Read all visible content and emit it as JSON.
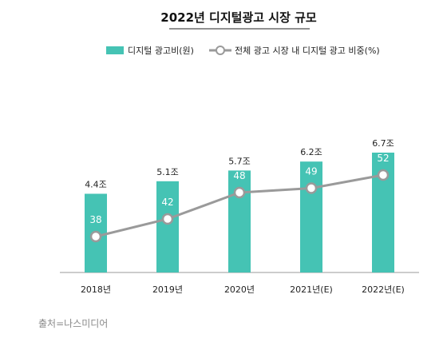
{
  "chart_data": {
    "type": "bar",
    "title": "2022년 디지털광고 시장 규모",
    "categories": [
      "2018년",
      "2019년",
      "2020년",
      "2021년(E)",
      "2022년(E)"
    ],
    "series": [
      {
        "name": "디지털 광고비(원)",
        "type": "bar",
        "values": [
          4.4,
          5.1,
          5.7,
          6.2,
          6.7
        ],
        "labels": [
          "4.4조",
          "5.1조",
          "5.7조",
          "6.2조",
          "6.7조"
        ],
        "color": "#45c3b4"
      },
      {
        "name": "전체 광고 시장 내 디지털 광고 비중(%)",
        "type": "line",
        "values": [
          38,
          42,
          48,
          49,
          52
        ],
        "color": "#9a9a9a"
      }
    ],
    "legend_position": "top",
    "grid": false
  },
  "source": "출처=나스미디어"
}
